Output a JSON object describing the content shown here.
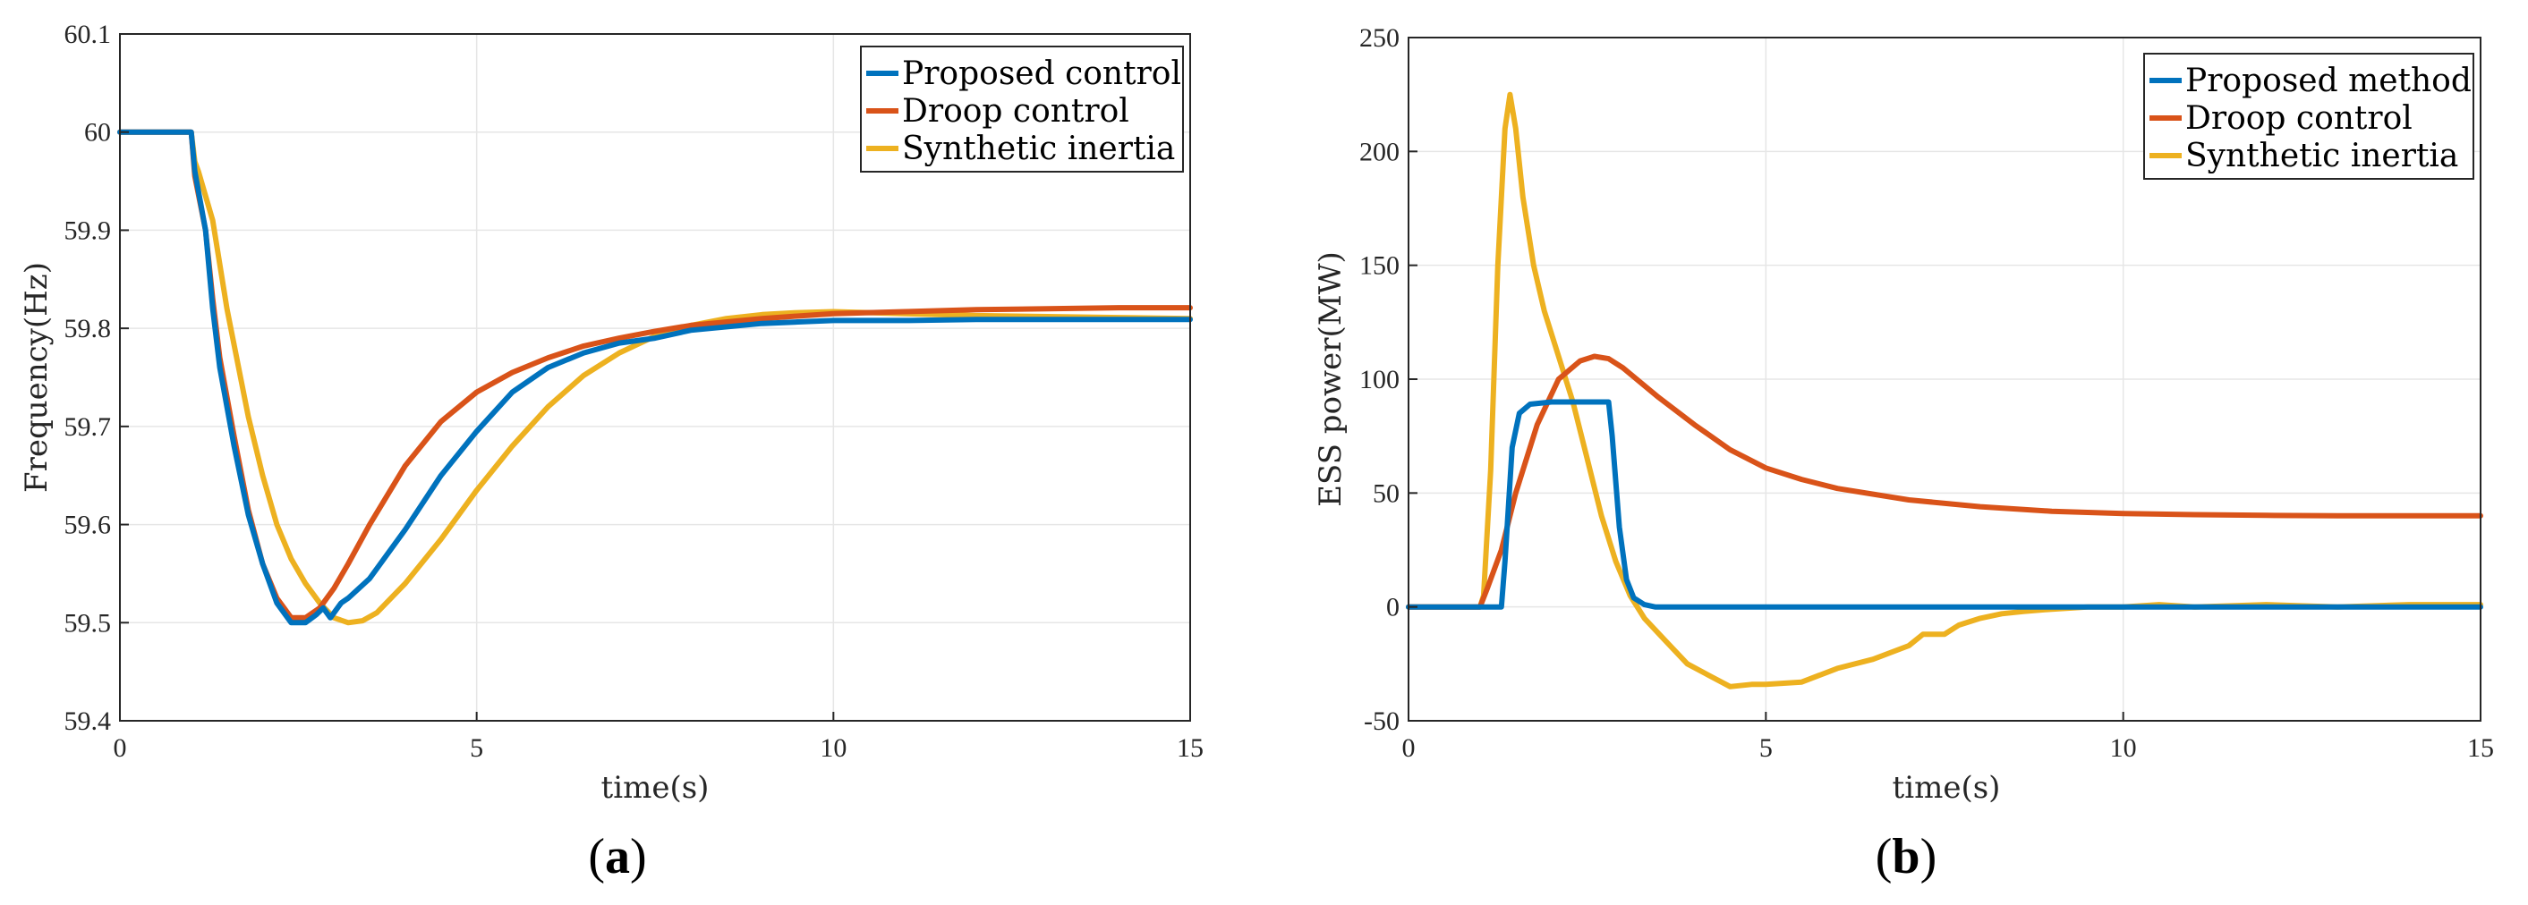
{
  "chart_data": [
    {
      "type": "line",
      "panel_label": "a",
      "xlabel": "time(s)",
      "ylabel": "Frequency(Hz)",
      "xlim": [
        0,
        15
      ],
      "ylim": [
        59.4,
        60.1
      ],
      "xticks": [
        0,
        5,
        10,
        15
      ],
      "xtick_labels": [
        "0",
        "5",
        "10",
        "15"
      ],
      "yticks": [
        59.4,
        59.5,
        59.6,
        59.7,
        59.8,
        59.9,
        60,
        60.1
      ],
      "ytick_labels": [
        "59.4",
        "59.5",
        "59.6",
        "59.7",
        "59.8",
        "59.9",
        "60",
        "60.1"
      ],
      "grid": true,
      "legend_position": "top-right",
      "series": [
        {
          "name": "Proposed control",
          "color": "#0072BD",
          "x": [
            0,
            1,
            1.05,
            1.2,
            1.3,
            1.4,
            1.6,
            1.8,
            2.0,
            2.2,
            2.4,
            2.6,
            2.75,
            2.85,
            2.95,
            3.0,
            3.1,
            3.2,
            3.5,
            4.0,
            4.5,
            5.0,
            5.5,
            6.0,
            6.5,
            7.0,
            7.5,
            8.0,
            9.0,
            10.0,
            11.0,
            12.0,
            13.0,
            14.0,
            15.0
          ],
          "y": [
            60,
            60,
            59.96,
            59.9,
            59.82,
            59.76,
            59.68,
            59.61,
            59.56,
            59.52,
            59.5,
            59.5,
            59.508,
            59.515,
            59.505,
            59.51,
            59.52,
            59.525,
            59.545,
            59.595,
            59.65,
            59.695,
            59.735,
            59.76,
            59.775,
            59.785,
            59.79,
            59.798,
            59.805,
            59.808,
            59.808,
            59.809,
            59.809,
            59.809,
            59.809
          ]
        },
        {
          "name": "Droop control",
          "color": "#D95319",
          "x": [
            0,
            1,
            1.05,
            1.2,
            1.3,
            1.4,
            1.6,
            1.8,
            2.0,
            2.2,
            2.4,
            2.6,
            2.8,
            3.0,
            3.2,
            3.5,
            4.0,
            4.5,
            5.0,
            5.5,
            6.0,
            6.5,
            7.0,
            7.5,
            8.0,
            9.0,
            10.0,
            11.0,
            12.0,
            13.0,
            14.0,
            15.0
          ],
          "y": [
            60,
            60,
            59.955,
            59.9,
            59.83,
            59.77,
            59.69,
            59.615,
            59.56,
            59.525,
            59.505,
            59.505,
            59.515,
            59.535,
            59.56,
            59.6,
            59.66,
            59.705,
            59.735,
            59.755,
            59.77,
            59.782,
            59.79,
            59.797,
            59.803,
            59.81,
            59.815,
            59.817,
            59.819,
            59.82,
            59.821,
            59.821
          ]
        },
        {
          "name": "Synthetic inertia",
          "color": "#EDB120",
          "x": [
            0,
            1,
            1.05,
            1.1,
            1.3,
            1.5,
            1.8,
            2.0,
            2.2,
            2.4,
            2.6,
            2.8,
            3.0,
            3.2,
            3.4,
            3.6,
            4.0,
            4.5,
            5.0,
            5.5,
            6.0,
            6.5,
            7.0,
            7.5,
            8.0,
            8.5,
            9.0,
            9.5,
            10.0,
            11.0,
            12.0,
            13.0,
            14.0,
            15.0
          ],
          "y": [
            60,
            60,
            59.97,
            59.96,
            59.91,
            59.82,
            59.71,
            59.65,
            59.6,
            59.565,
            59.54,
            59.52,
            59.505,
            59.5,
            59.502,
            59.51,
            59.54,
            59.585,
            59.635,
            59.68,
            59.72,
            59.752,
            59.775,
            59.792,
            59.803,
            59.81,
            59.814,
            59.816,
            59.817,
            59.815,
            59.813,
            59.812,
            59.811,
            59.81
          ]
        }
      ]
    },
    {
      "type": "line",
      "panel_label": "b",
      "xlabel": "time(s)",
      "ylabel": "ESS power(MW)",
      "xlim": [
        0,
        15
      ],
      "ylim": [
        -50,
        250
      ],
      "xticks": [
        0,
        5,
        10,
        15
      ],
      "xtick_labels": [
        "0",
        "5",
        "10",
        "15"
      ],
      "yticks": [
        -50,
        0,
        50,
        100,
        150,
        200,
        250
      ],
      "ytick_labels": [
        "-50",
        "0",
        "50",
        "100",
        "150",
        "200",
        "250"
      ],
      "grid": true,
      "legend_position": "top-right",
      "series": [
        {
          "name": "Proposed method",
          "color": "#0072BD",
          "x": [
            0,
            1.0,
            1.3,
            1.35,
            1.45,
            1.55,
            1.7,
            2.0,
            2.4,
            2.8,
            2.85,
            2.95,
            3.05,
            3.15,
            3.3,
            3.45,
            5,
            10,
            15
          ],
          "y": [
            0,
            0,
            0,
            20,
            70,
            85,
            89,
            90,
            90,
            90,
            75,
            35,
            12,
            4,
            1,
            0,
            0,
            0,
            0
          ]
        },
        {
          "name": "Droop control",
          "color": "#D95319",
          "x": [
            0,
            1.0,
            1.1,
            1.3,
            1.5,
            1.8,
            2.1,
            2.4,
            2.6,
            2.8,
            3.0,
            3.5,
            4.0,
            4.5,
            5.0,
            5.5,
            6.0,
            7.0,
            8.0,
            9.0,
            10.0,
            11.0,
            12.0,
            13.0,
            14.0,
            15.0
          ],
          "y": [
            0,
            0,
            8,
            25,
            50,
            80,
            100,
            108,
            110,
            109,
            105,
            92,
            80,
            69,
            61,
            56,
            52,
            47,
            44,
            42,
            41,
            40.5,
            40.2,
            40,
            40,
            40
          ]
        },
        {
          "name": "Synthetic inertia",
          "color": "#EDB120",
          "x": [
            0,
            1.0,
            1.05,
            1.15,
            1.25,
            1.35,
            1.42,
            1.5,
            1.6,
            1.75,
            1.9,
            2.1,
            2.3,
            2.5,
            2.7,
            2.9,
            3.1,
            3.3,
            3.6,
            3.9,
            4.2,
            4.5,
            4.8,
            5.0,
            5.5,
            6.0,
            6.5,
            7.0,
            7.2,
            7.5,
            7.7,
            8.0,
            8.3,
            8.6,
            9.0,
            9.5,
            10.0,
            10.5,
            11.0,
            12.0,
            13.0,
            14.0,
            15.0
          ],
          "y": [
            0,
            0,
            5,
            60,
            150,
            210,
            225,
            210,
            180,
            150,
            130,
            110,
            90,
            65,
            40,
            20,
            5,
            -5,
            -15,
            -25,
            -30,
            -35,
            -34,
            -34,
            -33,
            -27,
            -23,
            -17,
            -12,
            -12,
            -8,
            -5,
            -3,
            -2,
            -1,
            0,
            0,
            1,
            0,
            1,
            0,
            1,
            1
          ]
        }
      ]
    }
  ]
}
